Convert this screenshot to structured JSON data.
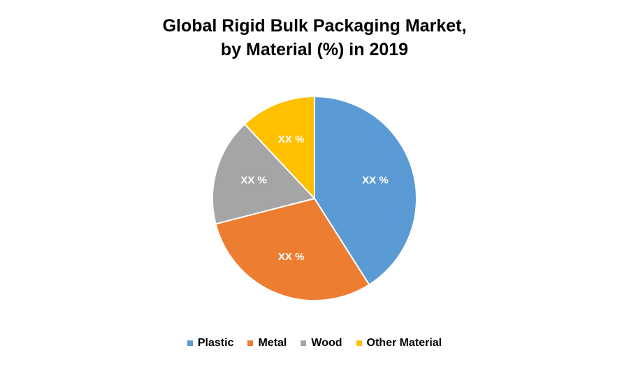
{
  "chart_data": {
    "type": "pie",
    "title_line1": "Global Rigid Bulk Packaging Market,",
    "title_line2": "by Material (%) in 2019",
    "categories": [
      "Plastic",
      "Metal",
      "Wood",
      "Other Material"
    ],
    "values": [
      41,
      30,
      17,
      12
    ],
    "data_labels": [
      "XX %",
      "XX %",
      "XX %",
      "XX %"
    ],
    "colors": [
      "#5B9BD5",
      "#ED7D31",
      "#A5A5A5",
      "#FFC000"
    ],
    "start_angle_deg": 0,
    "direction": "clockwise",
    "legend_position": "bottom"
  }
}
